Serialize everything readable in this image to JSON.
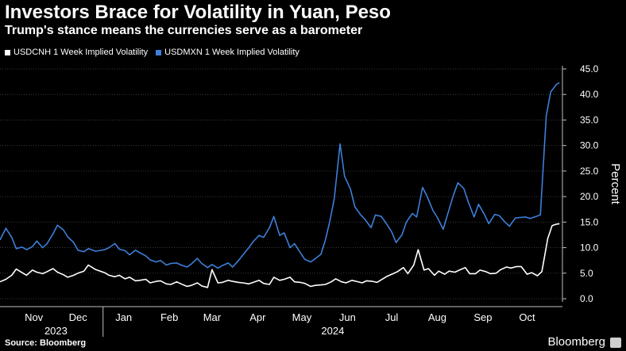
{
  "title": "Investors Brace for Volatility in Yuan, Peso",
  "subtitle": "Trump's stance means the currencies serve as a barometer",
  "source": "Source: Bloomberg",
  "brand": "Bloomberg",
  "colors": {
    "background": "#000000",
    "usdcnh": "#ffffff",
    "usdmxn": "#3d7fd9",
    "grid": "#3a3a3a"
  },
  "chart_data": {
    "type": "line",
    "ylabel": "Percent",
    "ylim": [
      0,
      45
    ],
    "yticks": [
      "0.0",
      "5.0",
      "10.0",
      "15.0",
      "20.0",
      "25.0",
      "30.0",
      "35.0",
      "40.0",
      "45.0"
    ],
    "ytick_values": [
      0,
      5,
      10,
      15,
      20,
      25,
      30,
      35,
      40,
      45
    ],
    "xlim": [
      "2023-10-23",
      "2024-11-08"
    ],
    "x_month_labels": [
      "Nov",
      "Dec",
      "Jan",
      "Feb",
      "Mar",
      "Apr",
      "May",
      "Jun",
      "Jul",
      "Aug",
      "Sep",
      "Oct"
    ],
    "x_month_dates": [
      "2023-11-15",
      "2023-12-15",
      "2024-01-15",
      "2024-02-15",
      "2024-03-15",
      "2024-04-15",
      "2024-05-15",
      "2024-06-15",
      "2024-07-15",
      "2024-08-15",
      "2024-09-15",
      "2024-10-15"
    ],
    "x_year_labels": [
      "2023",
      "2024"
    ],
    "x_year_dates": [
      "2023-11-30",
      "2024-06-05"
    ],
    "grid": true,
    "legend_position": "top-left",
    "series": [
      {
        "name": "USDCNH 1 Week Implied Volatility",
        "color": "#ffffff",
        "x": [
          "2023-10-23",
          "2023-10-27",
          "2023-10-31",
          "2023-11-03",
          "2023-11-07",
          "2023-11-10",
          "2023-11-14",
          "2023-11-17",
          "2023-11-21",
          "2023-11-24",
          "2023-11-28",
          "2023-12-01",
          "2023-12-05",
          "2023-12-08",
          "2023-12-12",
          "2023-12-15",
          "2023-12-19",
          "2023-12-22",
          "2023-12-27",
          "2024-01-02",
          "2024-01-05",
          "2024-01-09",
          "2024-01-12",
          "2024-01-16",
          "2024-01-19",
          "2024-01-23",
          "2024-01-26",
          "2024-01-30",
          "2024-02-02",
          "2024-02-06",
          "2024-02-09",
          "2024-02-13",
          "2024-02-16",
          "2024-02-20",
          "2024-02-23",
          "2024-02-27",
          "2024-03-01",
          "2024-03-05",
          "2024-03-08",
          "2024-03-12",
          "2024-03-15",
          "2024-03-19",
          "2024-03-22",
          "2024-03-26",
          "2024-03-29",
          "2024-04-02",
          "2024-04-05",
          "2024-04-09",
          "2024-04-12",
          "2024-04-16",
          "2024-04-19",
          "2024-04-23",
          "2024-04-26",
          "2024-04-30",
          "2024-05-03",
          "2024-05-07",
          "2024-05-10",
          "2024-05-14",
          "2024-05-17",
          "2024-05-21",
          "2024-05-24",
          "2024-05-28",
          "2024-05-31",
          "2024-06-04",
          "2024-06-07",
          "2024-06-11",
          "2024-06-14",
          "2024-06-18",
          "2024-06-21",
          "2024-06-25",
          "2024-06-28",
          "2024-07-02",
          "2024-07-05",
          "2024-07-09",
          "2024-07-12",
          "2024-07-16",
          "2024-07-19",
          "2024-07-23",
          "2024-07-26",
          "2024-07-30",
          "2024-08-02",
          "2024-08-06",
          "2024-08-09",
          "2024-08-13",
          "2024-08-16",
          "2024-08-20",
          "2024-08-23",
          "2024-08-27",
          "2024-08-30",
          "2024-09-03",
          "2024-09-06",
          "2024-09-10",
          "2024-09-13",
          "2024-09-17",
          "2024-09-20",
          "2024-09-24",
          "2024-09-27",
          "2024-10-01",
          "2024-10-04",
          "2024-10-08",
          "2024-10-11",
          "2024-10-15",
          "2024-10-18",
          "2024-10-22",
          "2024-10-25",
          "2024-10-29",
          "2024-11-01",
          "2024-11-04",
          "2024-11-06"
        ],
        "y": [
          3.3,
          3.8,
          4.6,
          5.8,
          5.1,
          4.6,
          5.6,
          5.2,
          4.9,
          5.3,
          5.9,
          5.2,
          4.7,
          4.2,
          4.6,
          5.0,
          5.4,
          6.6,
          5.7,
          5.1,
          4.6,
          4.3,
          4.6,
          3.9,
          4.2,
          3.5,
          3.6,
          3.8,
          3.1,
          3.4,
          3.5,
          2.9,
          2.8,
          3.3,
          2.9,
          2.4,
          2.6,
          3.1,
          2.5,
          2.2,
          5.7,
          3.1,
          3.2,
          3.6,
          3.4,
          3.2,
          3.1,
          2.9,
          3.2,
          3.6,
          3.0,
          2.8,
          4.2,
          3.6,
          3.8,
          4.2,
          3.3,
          3.2,
          3.0,
          2.4,
          2.6,
          2.7,
          2.8,
          3.3,
          3.9,
          3.3,
          3.1,
          3.6,
          3.4,
          3.1,
          3.5,
          3.4,
          3.2,
          3.9,
          4.4,
          4.9,
          5.3,
          6.1,
          4.9,
          6.6,
          9.6,
          5.6,
          5.9,
          4.6,
          5.4,
          4.8,
          5.4,
          5.2,
          5.6,
          6.1,
          4.9,
          4.9,
          5.6,
          5.3,
          4.9,
          5.0,
          5.7,
          6.2,
          6.0,
          6.3,
          6.3,
          4.8,
          5.1,
          4.5,
          5.3,
          11.8,
          14.3,
          14.6,
          14.7
        ]
      },
      {
        "name": "USDMXN 1 Week Implied Volatility",
        "color": "#3d7fd9",
        "x": [
          "2023-10-23",
          "2023-10-27",
          "2023-10-31",
          "2023-11-03",
          "2023-11-07",
          "2023-11-10",
          "2023-11-14",
          "2023-11-17",
          "2023-11-21",
          "2023-11-24",
          "2023-11-28",
          "2023-12-01",
          "2023-12-05",
          "2023-12-08",
          "2023-12-12",
          "2023-12-15",
          "2023-12-19",
          "2023-12-22",
          "2023-12-27",
          "2024-01-02",
          "2024-01-05",
          "2024-01-09",
          "2024-01-12",
          "2024-01-16",
          "2024-01-19",
          "2024-01-23",
          "2024-01-26",
          "2024-01-30",
          "2024-02-02",
          "2024-02-06",
          "2024-02-09",
          "2024-02-13",
          "2024-02-16",
          "2024-02-20",
          "2024-02-23",
          "2024-02-27",
          "2024-03-01",
          "2024-03-05",
          "2024-03-08",
          "2024-03-12",
          "2024-03-15",
          "2024-03-19",
          "2024-03-22",
          "2024-03-26",
          "2024-03-29",
          "2024-04-02",
          "2024-04-05",
          "2024-04-09",
          "2024-04-12",
          "2024-04-16",
          "2024-04-19",
          "2024-04-23",
          "2024-04-26",
          "2024-04-30",
          "2024-05-03",
          "2024-05-07",
          "2024-05-10",
          "2024-05-14",
          "2024-05-17",
          "2024-05-21",
          "2024-05-24",
          "2024-05-28",
          "2024-05-31",
          "2024-06-03",
          "2024-06-06",
          "2024-06-10",
          "2024-06-13",
          "2024-06-17",
          "2024-06-20",
          "2024-06-24",
          "2024-06-27",
          "2024-07-01",
          "2024-07-04",
          "2024-07-08",
          "2024-07-11",
          "2024-07-15",
          "2024-07-18",
          "2024-07-22",
          "2024-07-25",
          "2024-07-29",
          "2024-08-01",
          "2024-08-05",
          "2024-08-08",
          "2024-08-12",
          "2024-08-15",
          "2024-08-19",
          "2024-08-22",
          "2024-08-26",
          "2024-08-29",
          "2024-09-02",
          "2024-09-05",
          "2024-09-09",
          "2024-09-12",
          "2024-09-16",
          "2024-09-19",
          "2024-09-23",
          "2024-09-26",
          "2024-09-30",
          "2024-10-03",
          "2024-10-07",
          "2024-10-10",
          "2024-10-14",
          "2024-10-17",
          "2024-10-21",
          "2024-10-24",
          "2024-10-28",
          "2024-10-31",
          "2024-11-04",
          "2024-11-06"
        ],
        "y": [
          11.5,
          13.8,
          12.0,
          9.8,
          10.1,
          9.6,
          10.2,
          11.3,
          10.0,
          10.8,
          12.7,
          14.4,
          13.5,
          12.1,
          11.0,
          9.5,
          9.2,
          9.8,
          9.3,
          9.6,
          10.0,
          10.8,
          9.7,
          9.4,
          8.6,
          9.5,
          9.0,
          8.4,
          7.6,
          7.2,
          7.5,
          6.6,
          6.9,
          7.0,
          6.6,
          6.2,
          6.8,
          7.9,
          6.9,
          6.1,
          6.7,
          6.0,
          6.5,
          7.0,
          6.2,
          7.5,
          8.6,
          10.0,
          11.2,
          12.4,
          12.0,
          13.9,
          16.1,
          12.4,
          12.9,
          10.0,
          10.8,
          9.0,
          7.7,
          7.2,
          7.8,
          8.7,
          11.5,
          15.2,
          19.5,
          30.3,
          24.0,
          21.5,
          18.0,
          16.4,
          15.5,
          13.9,
          16.4,
          16.1,
          14.9,
          13.1,
          11.0,
          12.5,
          15.0,
          16.7,
          16.0,
          21.8,
          20.1,
          17.3,
          15.9,
          13.6,
          16.5,
          20.3,
          22.7,
          21.6,
          19.0,
          16.0,
          18.5,
          16.5,
          14.7,
          16.5,
          16.3,
          15.0,
          14.2,
          15.8,
          15.9,
          16.0,
          15.7,
          16.1,
          16.4,
          35.8,
          40.5,
          42.0,
          42.3
        ]
      }
    ]
  }
}
